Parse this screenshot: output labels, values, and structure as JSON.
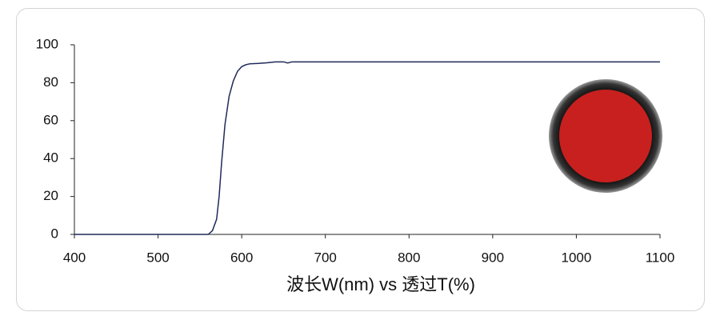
{
  "chart_data": {
    "type": "line",
    "x_label": "波长W(nm) vs 透过T(%)",
    "x": [
      400,
      555,
      560,
      565,
      570,
      573,
      576,
      580,
      585,
      590,
      595,
      600,
      605,
      610,
      620,
      630,
      640,
      650,
      655,
      660,
      670,
      700,
      800,
      900,
      1000,
      1100
    ],
    "series": [
      {
        "color": "#1f2a5a",
        "values": [
          0,
          0,
          0,
          2,
          8,
          20,
          38,
          58,
          73,
          81,
          86,
          88.5,
          89.5,
          90,
          90.2,
          90.5,
          91,
          91,
          90.4,
          91,
          91,
          91,
          91,
          91,
          91,
          91
        ]
      }
    ],
    "xlim": [
      400,
      1100
    ],
    "xticks": [
      400,
      500,
      600,
      700,
      800,
      900,
      1000,
      1100
    ],
    "ylim": [
      0,
      100
    ],
    "yticks": [
      0,
      20,
      40,
      60,
      80,
      100
    ]
  }
}
